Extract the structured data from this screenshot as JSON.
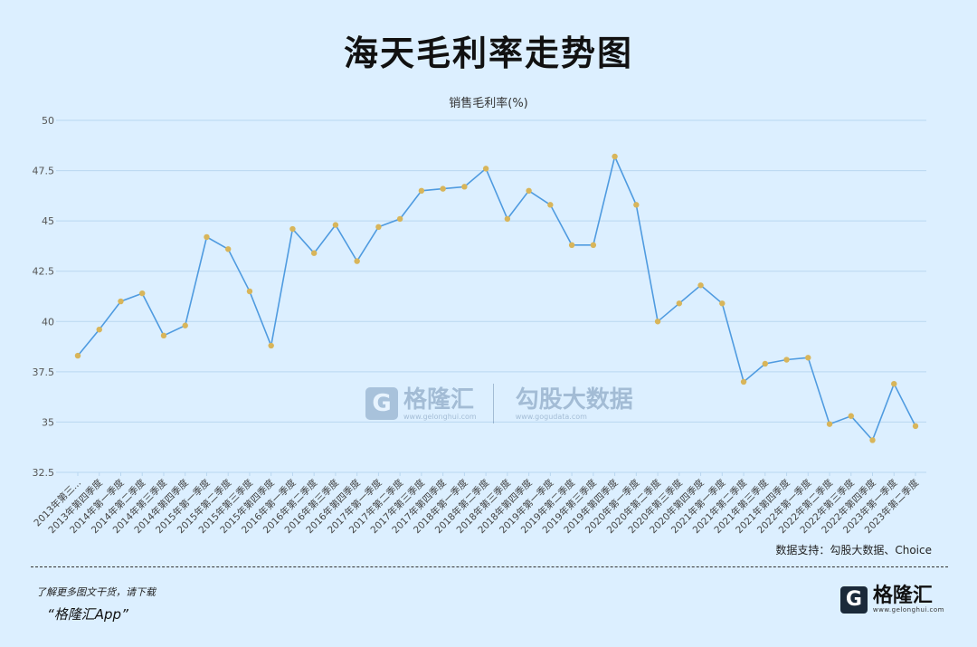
{
  "title": "海天毛利率走势图",
  "source_note": "数据支持：勾股大数据、Choice",
  "promo": {
    "line1": "了解更多图文干货，请下载",
    "line2": "“格隆汇App”"
  },
  "logo": {
    "mark": "G",
    "name": "格隆汇",
    "url": "www.gelonghui.com"
  },
  "watermark": {
    "brand1": "格隆汇",
    "url1": "www.gelonghui.com",
    "brand2": "勾股大数据",
    "url2": "www.gogudata.com"
  },
  "colors": {
    "line": "#4f9be0",
    "point": "#d8b55a",
    "grid": "#b9d7f0",
    "background": "#dcefff"
  },
  "chart_data": {
    "type": "line",
    "title": "销售毛利率(%)",
    "xlabel": "",
    "ylabel": "",
    "ylim": [
      32.5,
      50
    ],
    "yticks": [
      "50",
      "47.5",
      "45",
      "42.5",
      "40",
      "37.5",
      "35",
      "32.5"
    ],
    "grid": true,
    "categories": [
      "2013年第三...",
      "2013年第四季度",
      "2014年第一季度",
      "2014年第二季度",
      "2014年第三季度",
      "2014年第四季度",
      "2015年第一季度",
      "2015年第二季度",
      "2015年第三季度",
      "2015年第四季度",
      "2016年第一季度",
      "2016年第二季度",
      "2016年第三季度",
      "2016年第四季度",
      "2017年第一季度",
      "2017年第二季度",
      "2017年第三季度",
      "2017年第四季度",
      "2018年第一季度",
      "2018年第二季度",
      "2018年第三季度",
      "2018年第四季度",
      "2019年第一季度",
      "2019年第二季度",
      "2019年第三季度",
      "2019年第四季度",
      "2020年第一季度",
      "2020年第二季度",
      "2020年第三季度",
      "2020年第四季度",
      "2021年第一季度",
      "2021年第二季度",
      "2021年第三季度",
      "2021年第四季度",
      "2022年第一季度",
      "2022年第二季度",
      "2022年第三季度",
      "2022年第四季度",
      "2023年第一季度",
      "2023年第二季度"
    ],
    "series": [
      {
        "values": [
          38.3,
          39.6,
          41.0,
          41.4,
          39.3,
          39.8,
          44.2,
          43.6,
          41.5,
          38.8,
          44.6,
          43.4,
          44.8,
          43.0,
          44.7,
          45.1,
          46.5,
          46.6,
          46.7,
          47.6,
          45.1,
          46.5,
          45.8,
          43.8,
          43.8,
          48.2,
          45.8,
          40.0,
          40.9,
          41.8,
          40.9,
          37.0,
          37.9,
          38.1,
          38.2,
          34.9,
          35.3,
          34.1,
          36.9,
          34.8
        ]
      }
    ]
  }
}
